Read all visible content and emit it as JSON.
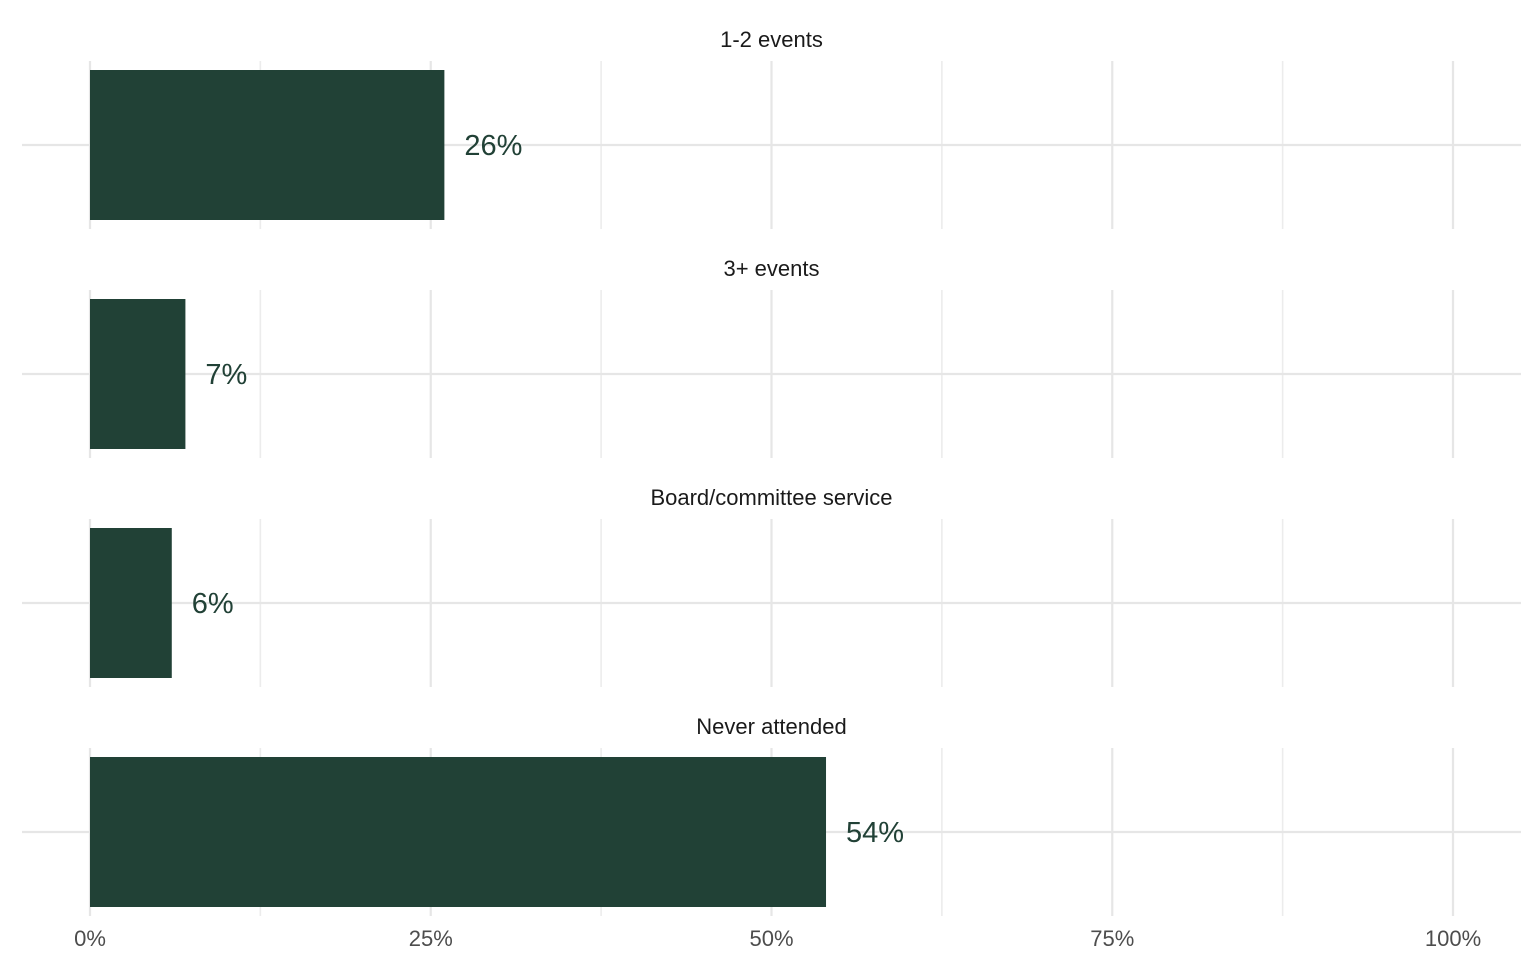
{
  "chart_data": {
    "type": "bar",
    "orientation": "horizontal",
    "facets": [
      "1-2 events",
      "3+ events",
      "Board/committee service",
      "Never attended"
    ],
    "values": [
      26,
      7,
      6,
      54
    ],
    "value_labels": [
      "26%",
      "7%",
      "6%",
      "54%"
    ],
    "xlim": [
      0,
      100
    ],
    "x_ticks": [
      0,
      25,
      50,
      75,
      100
    ],
    "x_tick_labels": [
      "0%",
      "25%",
      "50%",
      "75%",
      "100%"
    ],
    "grid": true,
    "legend": "none",
    "bar_color": "#214136",
    "label_color": "#214136"
  }
}
